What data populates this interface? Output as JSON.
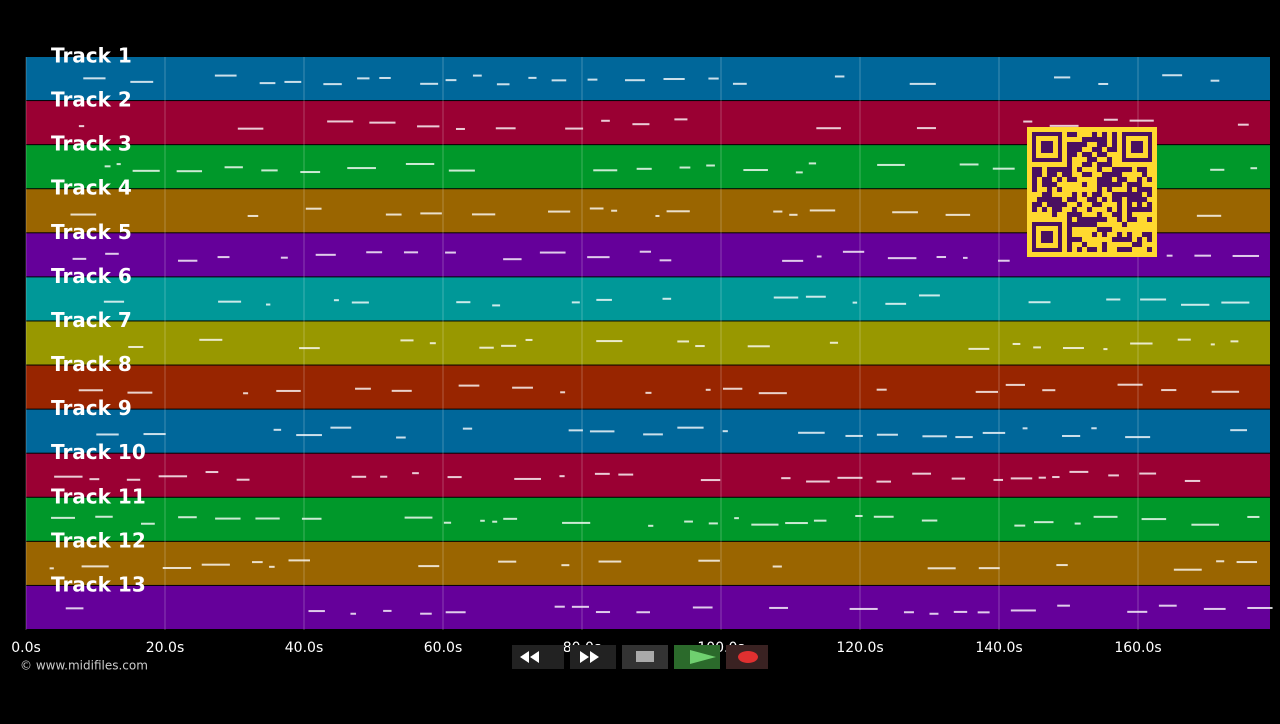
{
  "tracks": [
    "Track 1",
    "Track 2",
    "Track 3",
    "Track 4",
    "Track 5",
    "Track 6",
    "Track 7",
    "Track 8",
    "Track 9",
    "Track 10",
    "Track 11",
    "Track 12",
    "Track 13"
  ],
  "time_axis": [
    "0.0s",
    "20.0s",
    "40.0s",
    "60.0s",
    "80.0s",
    "100.0s",
    "120.0s",
    "140.0s",
    "160.0s"
  ],
  "footer": {
    "copyright": "© www.midifiles.com"
  }
}
